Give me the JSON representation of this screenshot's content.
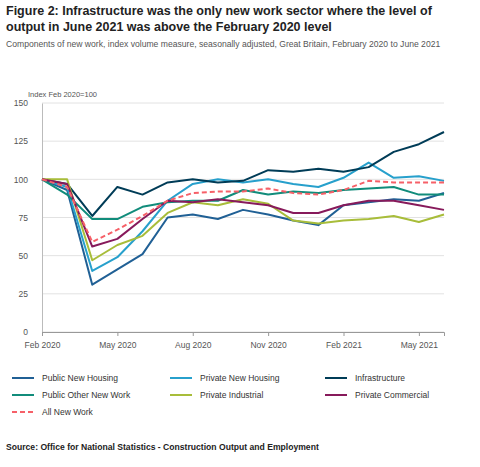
{
  "chart_data": {
    "type": "line",
    "title": "Figure 2: Infrastructure was the only new work sector where the level of output in June 2021 was above the February 2020 level",
    "subtitle": "Components of new work, index volume measure, seasonally adjusted, Great Britain, February 2020 to June 2021",
    "y_label": "Index Feb 2020=100",
    "source": "Source: Office for National Statistics - Construction Output and Employment",
    "categories": [
      "Feb 2020",
      null,
      null,
      "May 2020",
      null,
      null,
      "Aug 2020",
      null,
      null,
      "Nov 2020",
      null,
      null,
      "Feb 2021",
      null,
      null,
      "May 2021",
      null
    ],
    "ylim": [
      0,
      150
    ],
    "yticks": [
      0,
      25,
      50,
      75,
      100,
      125,
      150
    ],
    "grid": true,
    "legend": "bottom",
    "series": [
      {
        "name": "Public New Housing",
        "color": "#206095",
        "line_style": "solid",
        "values": [
          100,
          93,
          31,
          41,
          51,
          75,
          77,
          74,
          80,
          77,
          73,
          70,
          83,
          85,
          87,
          86,
          91
        ]
      },
      {
        "name": "Private New Housing",
        "color": "#27a0cc",
        "line_style": "solid",
        "values": [
          100,
          95,
          40,
          49,
          66,
          86,
          97,
          100,
          98,
          100,
          97,
          95,
          101,
          111,
          101,
          102,
          99
        ]
      },
      {
        "name": "Infrastructure",
        "color": "#003c57",
        "line_style": "solid",
        "values": [
          100,
          97,
          76,
          95,
          90,
          98,
          100,
          98,
          99,
          106,
          105,
          107,
          105,
          108,
          118,
          123,
          131
        ]
      },
      {
        "name": "Public Other New Work",
        "color": "#118c7b",
        "line_style": "solid",
        "values": [
          100,
          90,
          74,
          74,
          82,
          85,
          86,
          86,
          93,
          90,
          92,
          91,
          93,
          94,
          95,
          90,
          90
        ]
      },
      {
        "name": "Private Industrial",
        "color": "#a8bd3a",
        "line_style": "solid",
        "values": [
          100,
          100,
          47,
          57,
          63,
          78,
          85,
          83,
          87,
          84,
          73,
          71,
          73,
          74,
          76,
          72,
          77
        ]
      },
      {
        "name": "Private Commercial",
        "color": "#871a5b",
        "line_style": "solid",
        "values": [
          100,
          97,
          56,
          61,
          74,
          86,
          85,
          87,
          85,
          83,
          78,
          78,
          83,
          86,
          86,
          83,
          80
        ]
      },
      {
        "name": "All New Work",
        "color": "#f66068",
        "line_style": "dashed",
        "values": [
          100,
          95,
          59,
          67,
          76,
          86,
          91,
          92,
          92,
          94,
          91,
          90,
          93,
          99,
          98,
          98,
          98
        ]
      }
    ]
  }
}
